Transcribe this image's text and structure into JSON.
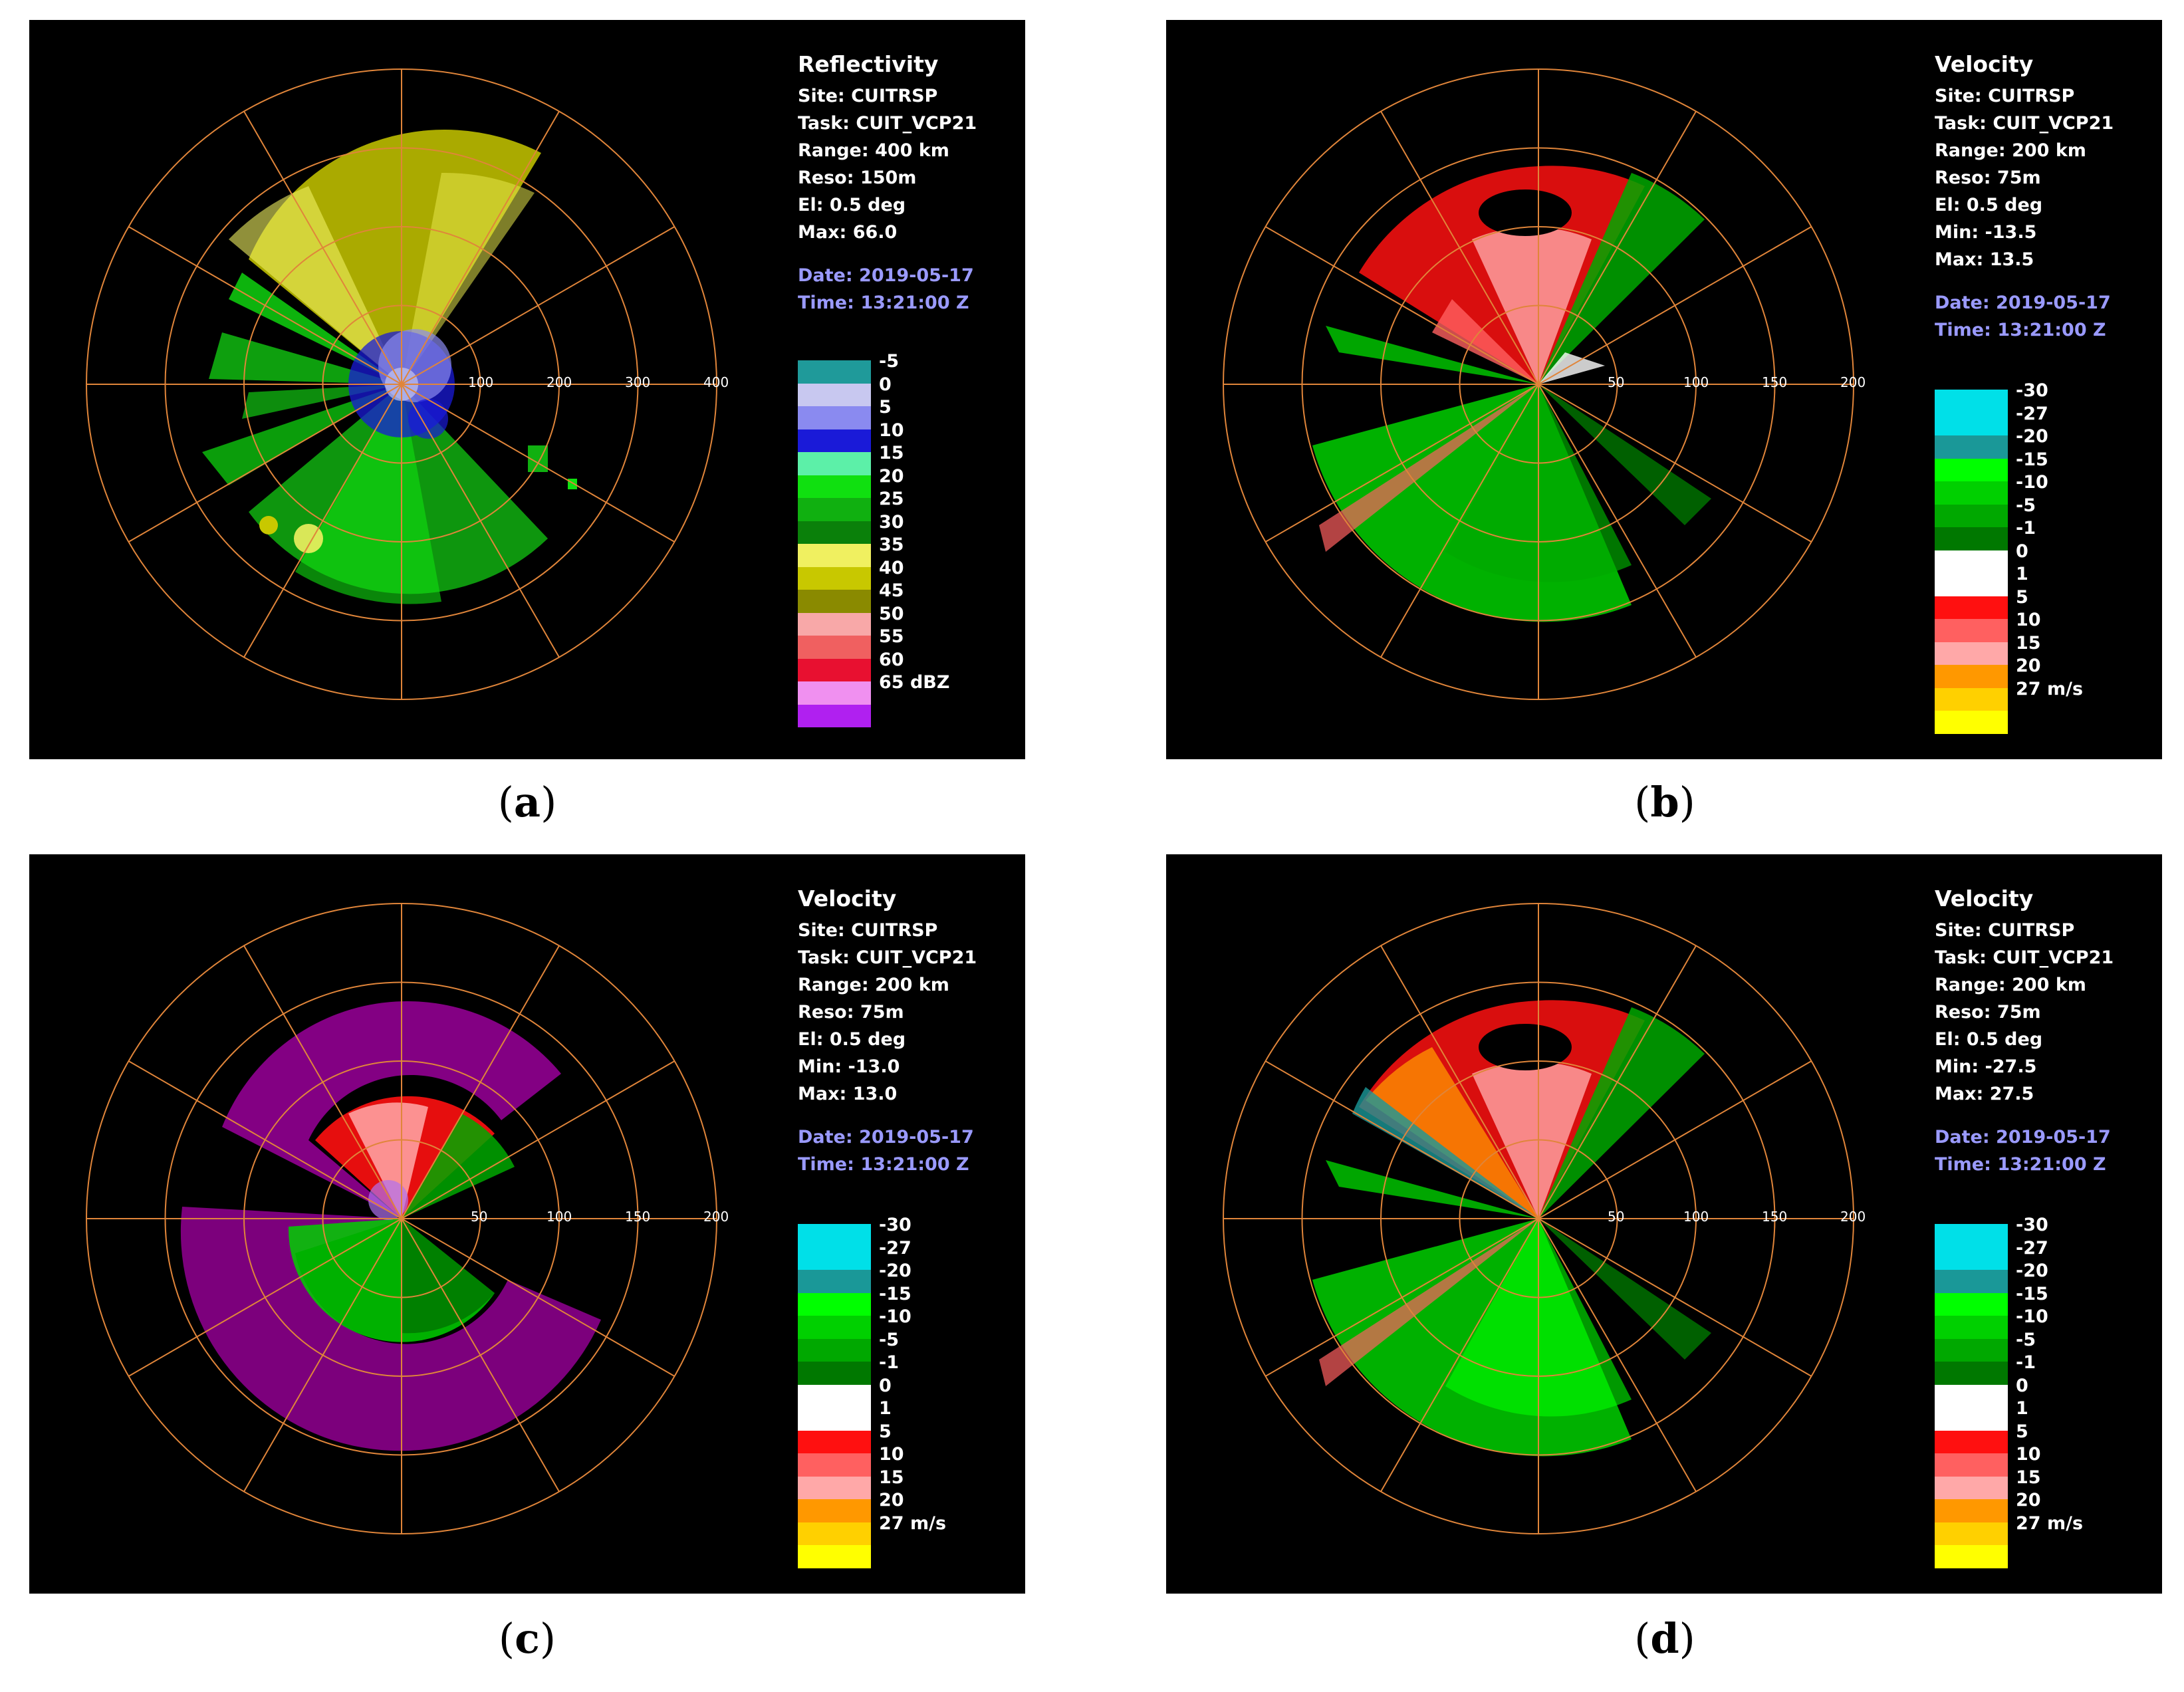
{
  "panels": {
    "a": {
      "caption": "a",
      "title": "Reflectivity",
      "site": "Site: CUITRSP",
      "task": "Task: CUIT_VCP21",
      "range": "Range: 400 km",
      "reso": "Reso: 150m",
      "el": "El: 0.5 deg",
      "min": "",
      "max": "Max: 66.0",
      "date": "Date: 2019-05-17",
      "time": "Time: 13:21:00 Z",
      "ring_labels": [
        "100",
        "200",
        "300",
        "400"
      ],
      "legend": [
        {
          "label": "-5",
          "color": "#1f9a9a"
        },
        {
          "label": "0",
          "color": "#c8c8f0"
        },
        {
          "label": "5",
          "color": "#8a8af0"
        },
        {
          "label": "10",
          "color": "#1a1ad8"
        },
        {
          "label": "15",
          "color": "#5cf0a8"
        },
        {
          "label": "20",
          "color": "#10e010"
        },
        {
          "label": "25",
          "color": "#10b010"
        },
        {
          "label": "30",
          "color": "#0a800a"
        },
        {
          "label": "35",
          "color": "#f0f060"
        },
        {
          "label": "40",
          "color": "#c8c800"
        },
        {
          "label": "45",
          "color": "#8a8a00"
        },
        {
          "label": "50",
          "color": "#f8a8a8"
        },
        {
          "label": "55",
          "color": "#f06060"
        },
        {
          "label": "60",
          "color": "#e81030"
        },
        {
          "label": "65 dBZ",
          "color": "#f090f0"
        },
        {
          "label": "",
          "color": "#b020f0"
        }
      ]
    },
    "b": {
      "caption": "b",
      "title": "Velocity",
      "site": "Site: CUITRSP",
      "task": "Task: CUIT_VCP21",
      "range": "Range: 200 km",
      "reso": "Reso: 75m",
      "el": "El: 0.5 deg",
      "min": "Min: -13.5",
      "max": "Max: 13.5",
      "date": "Date: 2019-05-17",
      "time": "Time: 13:21:00 Z",
      "ring_labels": [
        "50",
        "100",
        "150",
        "200"
      ],
      "legend": [
        {
          "label": "-30",
          "color": "#00e0e8"
        },
        {
          "label": "-27",
          "color": "#00e0e8"
        },
        {
          "label": "-20",
          "color": "#1a9898"
        },
        {
          "label": "-15",
          "color": "#00ff00"
        },
        {
          "label": "-10",
          "color": "#00d000"
        },
        {
          "label": "-5",
          "color": "#00a800"
        },
        {
          "label": "-1",
          "color": "#007800"
        },
        {
          "label": "0",
          "color": "#ffffff"
        },
        {
          "label": "1",
          "color": "#ffffff"
        },
        {
          "label": "5",
          "color": "#ff1010"
        },
        {
          "label": "10",
          "color": "#ff6060"
        },
        {
          "label": "15",
          "color": "#ffa8a8"
        },
        {
          "label": "20",
          "color": "#ff9800"
        },
        {
          "label": "27 m/s",
          "color": "#ffd000"
        },
        {
          "label": "",
          "color": "#ffff00"
        }
      ]
    },
    "c": {
      "caption": "c",
      "title": "Velocity",
      "site": "Site: CUITRSP",
      "task": "Task: CUIT_VCP21",
      "range": "Range: 200 km",
      "reso": "Reso: 75m",
      "el": "El: 0.5 deg",
      "min": "Min: -13.0",
      "max": "Max: 13.0",
      "date": "Date: 2019-05-17",
      "time": "Time: 13:21:00 Z",
      "ring_labels": [
        "50",
        "100",
        "150",
        "200"
      ],
      "legend": [
        {
          "label": "-30",
          "color": "#00e0e8"
        },
        {
          "label": "-27",
          "color": "#00e0e8"
        },
        {
          "label": "-20",
          "color": "#1a9898"
        },
        {
          "label": "-15",
          "color": "#00ff00"
        },
        {
          "label": "-10",
          "color": "#00d000"
        },
        {
          "label": "-5",
          "color": "#00a800"
        },
        {
          "label": "-1",
          "color": "#007800"
        },
        {
          "label": "0",
          "color": "#ffffff"
        },
        {
          "label": "1",
          "color": "#ffffff"
        },
        {
          "label": "5",
          "color": "#ff1010"
        },
        {
          "label": "10",
          "color": "#ff6060"
        },
        {
          "label": "15",
          "color": "#ffa8a8"
        },
        {
          "label": "20",
          "color": "#ff9800"
        },
        {
          "label": "27 m/s",
          "color": "#ffd000"
        },
        {
          "label": "",
          "color": "#ffff00"
        }
      ]
    },
    "d": {
      "caption": "d",
      "title": "Velocity",
      "site": "Site: CUITRSP",
      "task": "Task: CUIT_VCP21",
      "range": "Range: 200 km",
      "reso": "Reso: 75m",
      "el": "El: 0.5 deg",
      "min": "Min: -27.5",
      "max": "Max: 27.5",
      "date": "Date: 2019-05-17",
      "time": "Time: 13:21:00 Z",
      "ring_labels": [
        "50",
        "100",
        "150",
        "200"
      ],
      "legend": [
        {
          "label": "-30",
          "color": "#00e0e8"
        },
        {
          "label": "-27",
          "color": "#00e0e8"
        },
        {
          "label": "-20",
          "color": "#1a9898"
        },
        {
          "label": "-15",
          "color": "#00ff00"
        },
        {
          "label": "-10",
          "color": "#00d000"
        },
        {
          "label": "-5",
          "color": "#00a800"
        },
        {
          "label": "-1",
          "color": "#007800"
        },
        {
          "label": "0",
          "color": "#ffffff"
        },
        {
          "label": "1",
          "color": "#ffffff"
        },
        {
          "label": "5",
          "color": "#ff1010"
        },
        {
          "label": "10",
          "color": "#ff6060"
        },
        {
          "label": "15",
          "color": "#ffa8a8"
        },
        {
          "label": "20",
          "color": "#ff9800"
        },
        {
          "label": "27 m/s",
          "color": "#ffd000"
        },
        {
          "label": "",
          "color": "#ffff00"
        }
      ]
    }
  },
  "colors": {
    "grid": "#e0853a",
    "panel_bg": "#000000",
    "date_text": "#9a9aff"
  }
}
